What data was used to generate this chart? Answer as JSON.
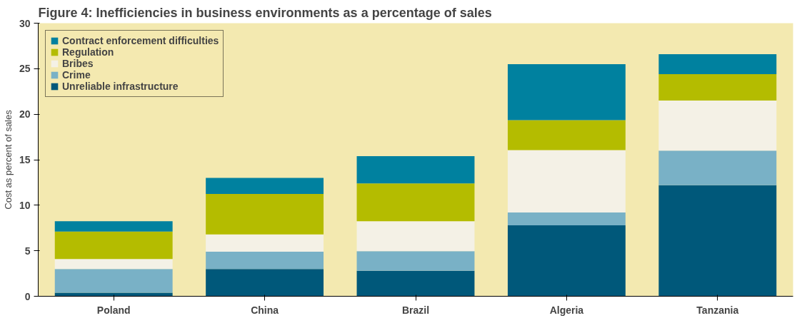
{
  "chart_data": {
    "type": "bar",
    "title": "Figure 4: Inefficiencies in business environments as a percentage of sales",
    "ylabel": "Cost as percent of sales",
    "categories": [
      "Poland",
      "China",
      "Brazil",
      "Algeria",
      "Tanzania"
    ],
    "stacked": true,
    "ylim": [
      0,
      30
    ],
    "yticks": [
      0,
      5,
      10,
      15,
      20,
      25,
      30
    ],
    "grid": false,
    "legend": "top left",
    "series": [
      {
        "name": "Unreliable infrastructure",
        "color": "#00587a",
        "values": [
          0.4,
          3.0,
          2.8,
          7.8,
          12.2
        ]
      },
      {
        "name": "Crime",
        "color": "#79b1c6",
        "values": [
          2.6,
          1.9,
          2.15,
          1.4,
          3.8
        ]
      },
      {
        "name": "Bribes",
        "color": "#f4f1e6",
        "values": [
          1.1,
          1.9,
          3.3,
          6.85,
          5.5
        ]
      },
      {
        "name": "Regulation",
        "color": "#b4bc00",
        "values": [
          3.0,
          4.45,
          4.15,
          3.3,
          2.9
        ]
      },
      {
        "name": "Contract enforcement difficulties",
        "color": "#00819f",
        "values": [
          1.15,
          1.75,
          3.0,
          6.15,
          2.2
        ]
      }
    ]
  }
}
